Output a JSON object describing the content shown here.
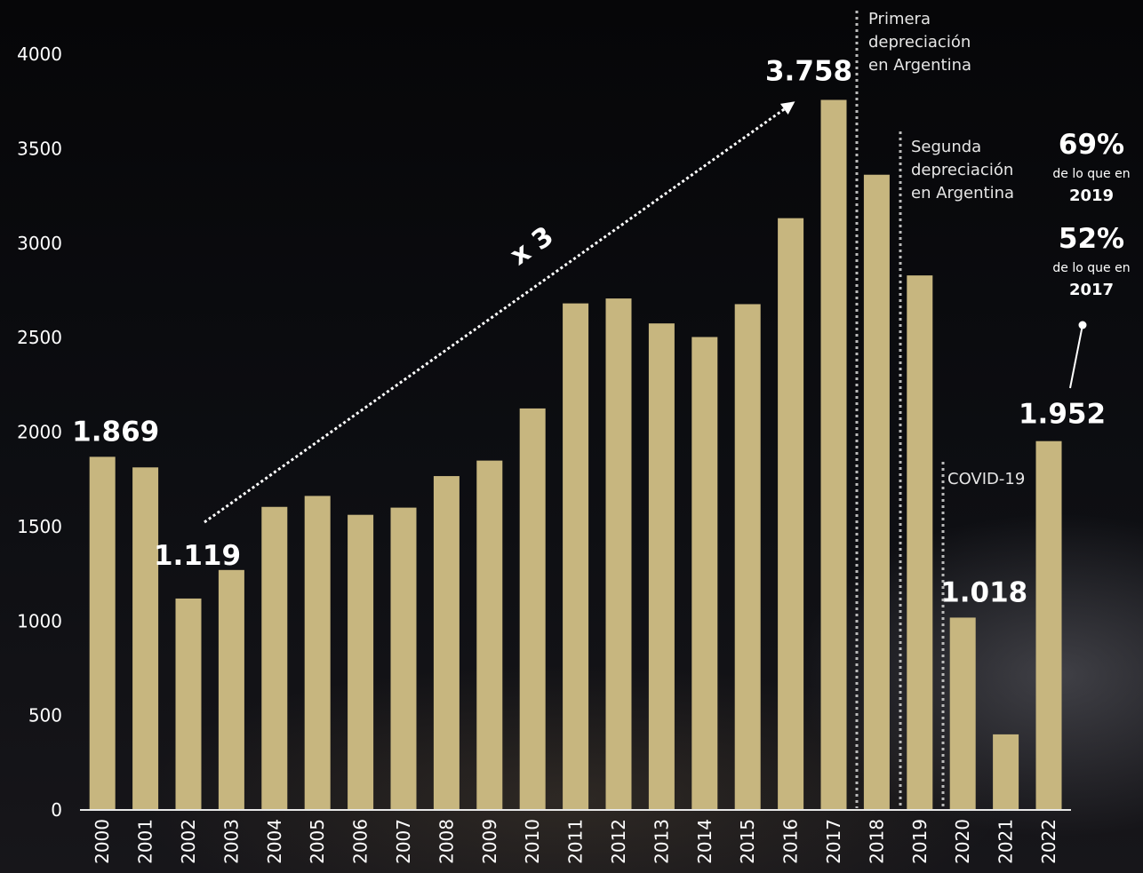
{
  "chart_data": {
    "type": "bar",
    "categories": [
      "2000",
      "2001",
      "2002",
      "2003",
      "2004",
      "2005",
      "2006",
      "2007",
      "2008",
      "2009",
      "2010",
      "2011",
      "2012",
      "2013",
      "2014",
      "2015",
      "2016",
      "2017",
      "2018",
      "2019",
      "2020",
      "2021",
      "2022"
    ],
    "values": [
      1869,
      1813,
      1119,
      1270,
      1604,
      1662,
      1562,
      1600,
      1767,
      1849,
      2125,
      2681,
      2707,
      2575,
      2503,
      2677,
      3132,
      3758,
      3362,
      2829,
      1018,
      400,
      1952
    ],
    "ylim": [
      0,
      4000
    ],
    "yticks": [
      "0",
      "500",
      "1000",
      "1500",
      "2000",
      "2500",
      "3000",
      "3500",
      "4000"
    ],
    "bar_color": "#c7b67f",
    "grid": false,
    "data_labels": [
      {
        "category": "2000",
        "text": "1.869"
      },
      {
        "category": "2002",
        "text": "1.119"
      },
      {
        "category": "2017",
        "text": "3.758"
      },
      {
        "category": "2020",
        "text": "1.018"
      },
      {
        "category": "2022",
        "text": "1.952"
      }
    ],
    "annotations": {
      "growth_arrow": {
        "from": "2002",
        "to": "2017",
        "label": "x 3"
      },
      "first_depreciation": {
        "after": "2017",
        "lines": [
          "Primera",
          "depreciación",
          "en Argentina"
        ]
      },
      "second_depreciation": {
        "after": "2018",
        "lines": [
          "Segunda",
          "depreciación",
          "en Argentina"
        ]
      },
      "covid": {
        "after": "2019",
        "text": "COVID-19"
      },
      "comparison_2019": {
        "pct": "69%",
        "text": "de lo que en",
        "year": "2019"
      },
      "comparison_2017": {
        "pct": "52%",
        "text": "de lo que en",
        "year": "2017"
      }
    }
  }
}
